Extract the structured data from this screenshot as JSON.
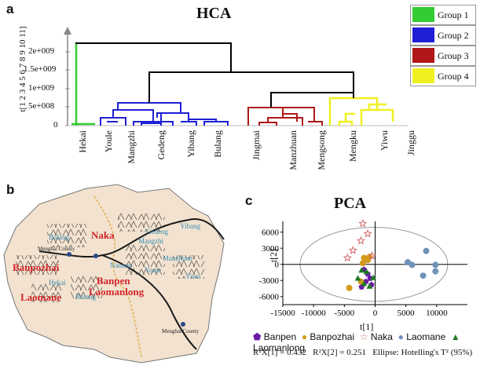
{
  "hca": {
    "panel": "a",
    "title": "HCA",
    "ylabel": "t[1 2 3 4 5 6 7 8 9 10 11]",
    "yticks": [
      "2e+009",
      "1.5e+009",
      "1e+009",
      "5e+008",
      "0"
    ],
    "leaves": [
      "Hekai",
      "Youle",
      "Mangzhi",
      "Gedeng",
      "Yibang",
      "Bulang",
      "Jingmai",
      "Manzhuan",
      "Mengsong",
      "Mengku",
      "Yiwu",
      "Jinggu"
    ],
    "groups": [
      {
        "label": "Group 1",
        "color": "#33cc33"
      },
      {
        "label": "Group 2",
        "color": "#1f1fd6"
      },
      {
        "label": "Group 3",
        "color": "#b01818"
      },
      {
        "label": "Group 4",
        "color": "#f0f020"
      }
    ]
  },
  "map": {
    "panel": "b",
    "places_red": [
      "Naka",
      "Banpozhai",
      "Banpen",
      "Laomanlong",
      "Laomane"
    ],
    "places_blue": [
      "Bulang",
      "Gedeng",
      "Yibang",
      "Mangzhi",
      "Manzhuan",
      "Nannuo",
      "Youle",
      "Hekai",
      "Bulang",
      "Yiwu"
    ],
    "counties": [
      "Menghai County",
      "Menghai County"
    ]
  },
  "pca": {
    "panel": "c",
    "title": "PCA",
    "xlabel": "t[1]",
    "ylabel": "t[2]",
    "xticks": [
      "-15000",
      "-10000",
      "-5000",
      "0",
      "5000",
      "10000"
    ],
    "yticks": [
      "6000",
      "3000",
      "0",
      "-3000",
      "-6000"
    ],
    "legend": [
      {
        "label": "Banpen",
        "color": "#6a1aa8",
        "marker": "pentagon"
      },
      {
        "label": "Banpozhai",
        "color": "#d39a1c",
        "marker": "circle"
      },
      {
        "label": "Naka",
        "color": "#d16a6a",
        "marker": "star"
      },
      {
        "label": "Laomane",
        "color": "#6f93b8",
        "marker": "circle"
      },
      {
        "label": "Laomanlong",
        "color": "#1e7a22",
        "marker": "triangle"
      }
    ],
    "stats": "R²X[1] = 0.432   R²X[2] = 0.251   Ellipse: Hotelling's T² (95%)"
  },
  "chart_data": [
    {
      "type": "scatter",
      "title": "PCA",
      "xlabel": "t[1]",
      "ylabel": "t[2]",
      "xlim": [
        -15000,
        15000
      ],
      "ylim": [
        -7500,
        8000
      ],
      "series": [
        {
          "name": "Banpen",
          "points": [
            [
              -1800,
              -1000
            ],
            [
              -1200,
              -1800
            ],
            [
              -800,
              -2600
            ],
            [
              -1500,
              -3200
            ],
            [
              -600,
              -3800
            ],
            [
              -2200,
              -4200
            ]
          ]
        },
        {
          "name": "Banpozhai",
          "points": [
            [
              -4200,
              -4400
            ],
            [
              -2300,
              -3200
            ],
            [
              -1800,
              1200
            ],
            [
              -1200,
              800
            ],
            [
              -900,
              1400
            ],
            [
              -2000,
              200
            ]
          ]
        },
        {
          "name": "Naka",
          "points": [
            [
              -2000,
              7600
            ],
            [
              -1200,
              5700
            ],
            [
              -4500,
              1200
            ],
            [
              -3600,
              2600
            ],
            [
              -2300,
              4400
            ],
            [
              -500,
              1600
            ]
          ]
        },
        {
          "name": "Laomane",
          "points": [
            [
              5300,
              400
            ],
            [
              6000,
              -100
            ],
            [
              8300,
              2500
            ],
            [
              9800,
              -100
            ],
            [
              9800,
              -1300
            ],
            [
              7800,
              -2100
            ]
          ]
        },
        {
          "name": "Laomanlong",
          "points": [
            [
              -2200,
              -1100
            ],
            [
              -1400,
              -1400
            ],
            [
              -2800,
              -2600
            ],
            [
              -900,
              -4100
            ],
            [
              -300,
              -2500
            ],
            [
              -1800,
              -3600
            ]
          ]
        }
      ]
    }
  ]
}
